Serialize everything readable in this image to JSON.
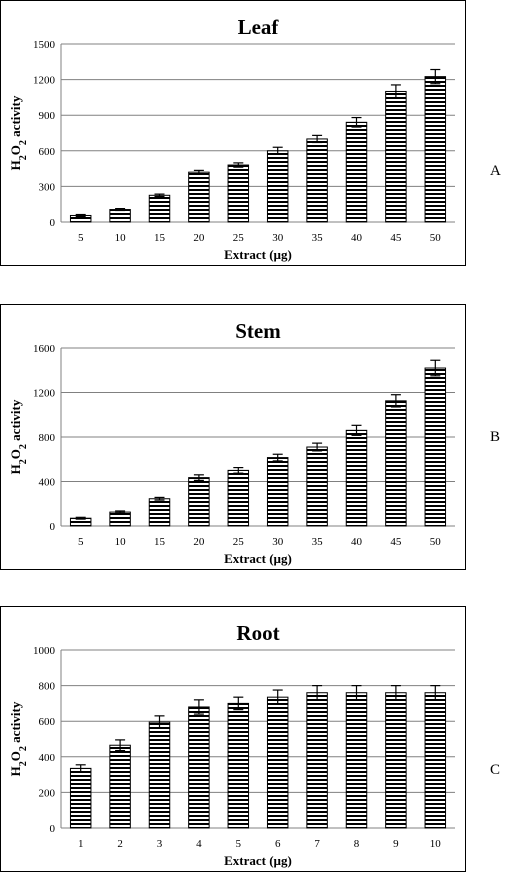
{
  "chart_data": [
    {
      "type": "bar",
      "title": "Leaf",
      "xlabel": "Extract (µg)",
      "ylabel": "H2O2 activity",
      "panel_letter": "A",
      "categories": [
        "5",
        "10",
        "15",
        "20",
        "25",
        "30",
        "35",
        "40",
        "45",
        "50"
      ],
      "values": [
        55,
        105,
        225,
        420,
        480,
        600,
        700,
        840,
        1100,
        1225
      ],
      "errors": [
        8,
        8,
        10,
        15,
        18,
        30,
        30,
        40,
        55,
        60
      ],
      "ylim": [
        0,
        1500
      ],
      "yticks": [
        0,
        300,
        600,
        900,
        1200,
        1500
      ],
      "grid": true,
      "bar_fill": "horizontal-stripes"
    },
    {
      "type": "bar",
      "title": "Stem",
      "xlabel": "Extract (µg)",
      "ylabel": "H2O2 activity",
      "panel_letter": "B",
      "categories": [
        "5",
        "10",
        "15",
        "20",
        "25",
        "30",
        "35",
        "40",
        "45",
        "50"
      ],
      "values": [
        70,
        125,
        245,
        435,
        500,
        615,
        710,
        860,
        1125,
        1420
      ],
      "errors": [
        8,
        10,
        12,
        25,
        25,
        30,
        35,
        45,
        55,
        70
      ],
      "ylim": [
        0,
        1600
      ],
      "yticks": [
        0,
        400,
        800,
        1200,
        1600
      ],
      "grid": true,
      "bar_fill": "horizontal-stripes"
    },
    {
      "type": "bar",
      "title": "Root",
      "xlabel": "Extract (µg)",
      "ylabel": "H2O2 activity",
      "panel_letter": "C",
      "categories": [
        "1",
        "2",
        "3",
        "4",
        "5",
        "6",
        "7",
        "8",
        "9",
        "10"
      ],
      "values": [
        335,
        465,
        595,
        680,
        700,
        735,
        760,
        760,
        760,
        760
      ],
      "errors": [
        20,
        30,
        35,
        40,
        35,
        40,
        40,
        40,
        40,
        40
      ],
      "ylim": [
        0,
        1000
      ],
      "yticks": [
        0,
        200,
        400,
        600,
        800,
        1000
      ],
      "grid": true,
      "bar_fill": "horizontal-stripes"
    }
  ]
}
